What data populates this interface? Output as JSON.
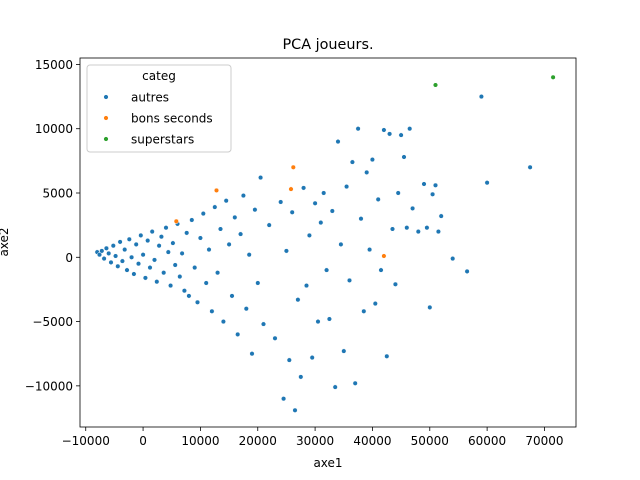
{
  "chart_data": {
    "type": "scatter",
    "title": "PCA joueurs.",
    "xlabel": "axe1",
    "ylabel": "axe2",
    "xlim": [
      -11000,
      75500
    ],
    "ylim": [
      -13200,
      15500
    ],
    "xticks": [
      -10000,
      0,
      10000,
      20000,
      30000,
      40000,
      50000,
      60000,
      70000
    ],
    "xtick_labels": [
      "−10000",
      "0",
      "10000",
      "20000",
      "30000",
      "40000",
      "50000",
      "60000",
      "70000"
    ],
    "yticks": [
      -10000,
      -5000,
      0,
      5000,
      10000,
      15000
    ],
    "ytick_labels": [
      "−10000",
      "−5000",
      "0",
      "5000",
      "10000",
      "15000"
    ],
    "grid": false,
    "legend": {
      "title": "categ",
      "placement": "top-left",
      "entries": [
        {
          "label": "autres",
          "color": "#1f77b4"
        },
        {
          "label": "bons seconds",
          "color": "#ff7f0e"
        },
        {
          "label": "superstars",
          "color": "#2ca02c"
        }
      ]
    },
    "series": [
      {
        "name": "autres",
        "color": "#1f77b4",
        "points": [
          [
            -8000,
            400
          ],
          [
            -7600,
            200
          ],
          [
            -7200,
            500
          ],
          [
            -6800,
            -100
          ],
          [
            -6400,
            700
          ],
          [
            -6000,
            300
          ],
          [
            -5600,
            -400
          ],
          [
            -5200,
            900
          ],
          [
            -4800,
            100
          ],
          [
            -4400,
            -700
          ],
          [
            -4000,
            1200
          ],
          [
            -3600,
            -300
          ],
          [
            -3200,
            600
          ],
          [
            -2800,
            -1000
          ],
          [
            -2400,
            1400
          ],
          [
            -2000,
            0
          ],
          [
            -1600,
            -1300
          ],
          [
            -1200,
            1000
          ],
          [
            -800,
            -500
          ],
          [
            -400,
            1700
          ],
          [
            0,
            200
          ],
          [
            400,
            -1600
          ],
          [
            800,
            1300
          ],
          [
            1200,
            -800
          ],
          [
            1600,
            2000
          ],
          [
            2000,
            -200
          ],
          [
            2400,
            -1900
          ],
          [
            2800,
            900
          ],
          [
            3200,
            1600
          ],
          [
            3600,
            -1200
          ],
          [
            4000,
            2300
          ],
          [
            4400,
            400
          ],
          [
            4800,
            -2200
          ],
          [
            5200,
            1100
          ],
          [
            5600,
            -600
          ],
          [
            6000,
            2600
          ],
          [
            6400,
            -1500
          ],
          [
            6800,
            300
          ],
          [
            7200,
            -2600
          ],
          [
            7600,
            1900
          ],
          [
            8000,
            -3000
          ],
          [
            8500,
            2900
          ],
          [
            9000,
            -800
          ],
          [
            9500,
            -3500
          ],
          [
            10000,
            1500
          ],
          [
            10500,
            3400
          ],
          [
            11000,
            -2000
          ],
          [
            11500,
            600
          ],
          [
            12000,
            -4200
          ],
          [
            12500,
            3900
          ],
          [
            13000,
            -1200
          ],
          [
            13500,
            2200
          ],
          [
            14000,
            -5000
          ],
          [
            14500,
            4400
          ],
          [
            15000,
            1000
          ],
          [
            15500,
            -3000
          ],
          [
            16000,
            3100
          ],
          [
            16500,
            -6000
          ],
          [
            17000,
            1800
          ],
          [
            17500,
            4800
          ],
          [
            18000,
            -4000
          ],
          [
            18500,
            200
          ],
          [
            19000,
            -7500
          ],
          [
            19500,
            3700
          ],
          [
            20000,
            -2000
          ],
          [
            20500,
            6200
          ],
          [
            21000,
            -5200
          ],
          [
            22000,
            2500
          ],
          [
            23000,
            -6300
          ],
          [
            24000,
            4300
          ],
          [
            24500,
            -11000
          ],
          [
            25000,
            500
          ],
          [
            25500,
            -8000
          ],
          [
            26000,
            3500
          ],
          [
            26500,
            -11900
          ],
          [
            27000,
            -3300
          ],
          [
            27500,
            -9300
          ],
          [
            28000,
            5400
          ],
          [
            28500,
            -2200
          ],
          [
            29000,
            1700
          ],
          [
            29500,
            -7800
          ],
          [
            30000,
            4200
          ],
          [
            30500,
            -5000
          ],
          [
            31000,
            2700
          ],
          [
            31500,
            5000
          ],
          [
            32000,
            -1000
          ],
          [
            32500,
            -4800
          ],
          [
            33000,
            3600
          ],
          [
            33500,
            -10100
          ],
          [
            34000,
            9000
          ],
          [
            34500,
            1000
          ],
          [
            35000,
            -7300
          ],
          [
            35500,
            5500
          ],
          [
            36000,
            -1800
          ],
          [
            36500,
            7400
          ],
          [
            37000,
            -9800
          ],
          [
            37500,
            10000
          ],
          [
            38000,
            3000
          ],
          [
            38500,
            -4200
          ],
          [
            39000,
            6600
          ],
          [
            39500,
            600
          ],
          [
            40000,
            7600
          ],
          [
            40500,
            -3600
          ],
          [
            41000,
            4500
          ],
          [
            41500,
            -1000
          ],
          [
            42000,
            9900
          ],
          [
            42500,
            -7700
          ],
          [
            43000,
            9600
          ],
          [
            43500,
            2200
          ],
          [
            44000,
            -2100
          ],
          [
            44500,
            5000
          ],
          [
            45000,
            9500
          ],
          [
            45500,
            7800
          ],
          [
            46000,
            2300
          ],
          [
            46500,
            10000
          ],
          [
            47000,
            3800
          ],
          [
            48000,
            2000
          ],
          [
            49000,
            5700
          ],
          [
            49500,
            2300
          ],
          [
            50000,
            -3900
          ],
          [
            50500,
            4900
          ],
          [
            51000,
            5600
          ],
          [
            51500,
            2000
          ],
          [
            52000,
            3200
          ],
          [
            54000,
            -100
          ],
          [
            56500,
            -1100
          ],
          [
            59000,
            12500
          ],
          [
            60000,
            5800
          ],
          [
            67500,
            7000
          ]
        ]
      },
      {
        "name": "bons seconds",
        "color": "#ff7f0e",
        "points": [
          [
            5800,
            2800
          ],
          [
            12800,
            5200
          ],
          [
            25800,
            5300
          ],
          [
            26200,
            7000
          ],
          [
            42000,
            100
          ]
        ]
      },
      {
        "name": "superstars",
        "color": "#2ca02c",
        "points": [
          [
            51000,
            13400
          ],
          [
            71500,
            14000
          ]
        ]
      }
    ]
  }
}
